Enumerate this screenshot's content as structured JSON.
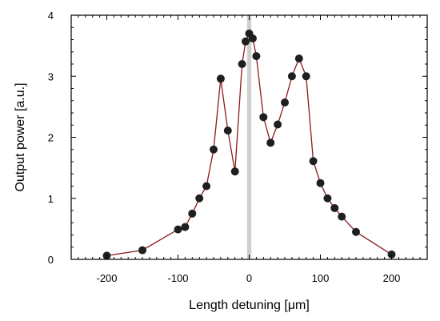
{
  "chart_data": {
    "type": "line",
    "title": "",
    "xlabel": "Length detuning [μm]",
    "ylabel": "Output power [a.u.]",
    "xlim": [
      -250,
      250
    ],
    "ylim": [
      0,
      4
    ],
    "x_ticks": [
      -200,
      -100,
      0,
      100,
      200
    ],
    "x_tick_labels": [
      "-200",
      "-100",
      "0",
      "100",
      "200"
    ],
    "y_ticks": [
      0,
      1,
      2,
      3,
      4
    ],
    "y_tick_labels": [
      "0",
      "1",
      "2",
      "3",
      "4"
    ],
    "grid": false,
    "legend": "none",
    "highlight_band": {
      "x_range": [
        -3,
        3
      ],
      "color": "#cfcfcf"
    },
    "series": [
      {
        "line_color": "#8b1a1a",
        "marker_color": "#1f1f1f",
        "points": [
          {
            "x": -200,
            "y": 0.06
          },
          {
            "x": -150,
            "y": 0.15
          },
          {
            "x": -100,
            "y": 0.49
          },
          {
            "x": -90,
            "y": 0.53
          },
          {
            "x": -80,
            "y": 0.75
          },
          {
            "x": -70,
            "y": 1.0
          },
          {
            "x": -60,
            "y": 1.2
          },
          {
            "x": -50,
            "y": 1.8
          },
          {
            "x": -40,
            "y": 2.96
          },
          {
            "x": -30,
            "y": 2.11
          },
          {
            "x": -20,
            "y": 1.44
          },
          {
            "x": -10,
            "y": 3.2
          },
          {
            "x": -5,
            "y": 3.57
          },
          {
            "x": 0,
            "y": 3.7
          },
          {
            "x": 5,
            "y": 3.62
          },
          {
            "x": 10,
            "y": 3.33
          },
          {
            "x": 20,
            "y": 2.33
          },
          {
            "x": 30,
            "y": 1.91
          },
          {
            "x": 40,
            "y": 2.21
          },
          {
            "x": 50,
            "y": 2.57
          },
          {
            "x": 60,
            "y": 3.0
          },
          {
            "x": 70,
            "y": 3.29
          },
          {
            "x": 80,
            "y": 3.0
          },
          {
            "x": 90,
            "y": 1.61
          },
          {
            "x": 100,
            "y": 1.25
          },
          {
            "x": 110,
            "y": 1.0
          },
          {
            "x": 120,
            "y": 0.84
          },
          {
            "x": 130,
            "y": 0.7
          },
          {
            "x": 150,
            "y": 0.45
          },
          {
            "x": 200,
            "y": 0.08
          }
        ]
      }
    ]
  }
}
